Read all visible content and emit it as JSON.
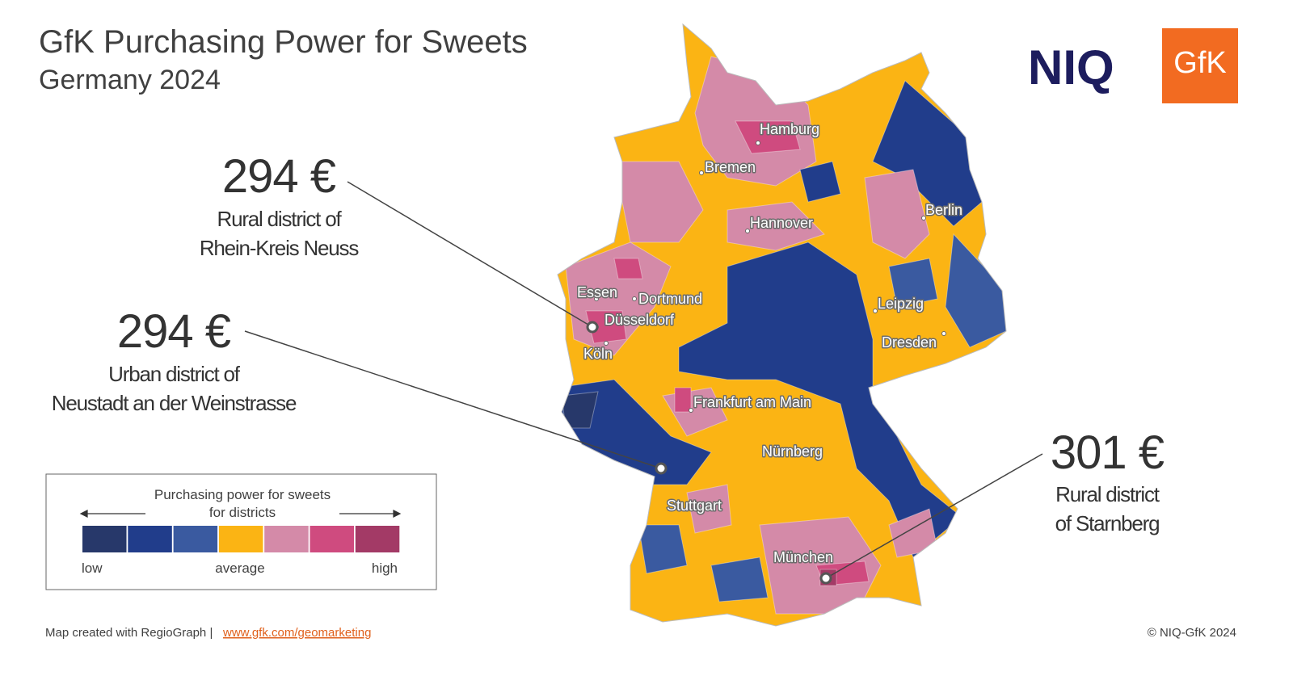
{
  "header": {
    "title": "GfK Purchasing Power for Sweets",
    "subtitle": "Germany 2024"
  },
  "logos": {
    "niq": "NIQ",
    "gfk": "GfK"
  },
  "callouts": [
    {
      "value": "294 €",
      "lines": [
        "Rural district of",
        "Rhein-Kreis Neuss"
      ]
    },
    {
      "value": "294 €",
      "lines": [
        "Urban district of",
        "Neustadt an der Weinstrasse"
      ]
    },
    {
      "value": "301 €",
      "lines": [
        "Rural district",
        "of Starnberg"
      ]
    }
  ],
  "cities": [
    "Hamburg",
    "Bremen",
    "Hannover",
    "Berlin",
    "Essen",
    "Dortmund",
    "Düsseldorf",
    "Köln",
    "Leipzig",
    "Dresden",
    "Frankfurt am Main",
    "Nürnberg",
    "Stuttgart",
    "München"
  ],
  "legend": {
    "title": [
      "Purchasing power for sweets",
      "for districts"
    ],
    "low": "low",
    "average": "average",
    "high": "high",
    "colors": [
      "#27386a",
      "#213d8b",
      "#3a5aa0",
      "#fbb414",
      "#d48aa8",
      "#cf4b7f",
      "#a33a66"
    ]
  },
  "footer": {
    "credit": "Map created with RegioGraph |",
    "link": "www.gfk.com/geomarketing",
    "copyright": "© NIQ-GfK 2024"
  }
}
